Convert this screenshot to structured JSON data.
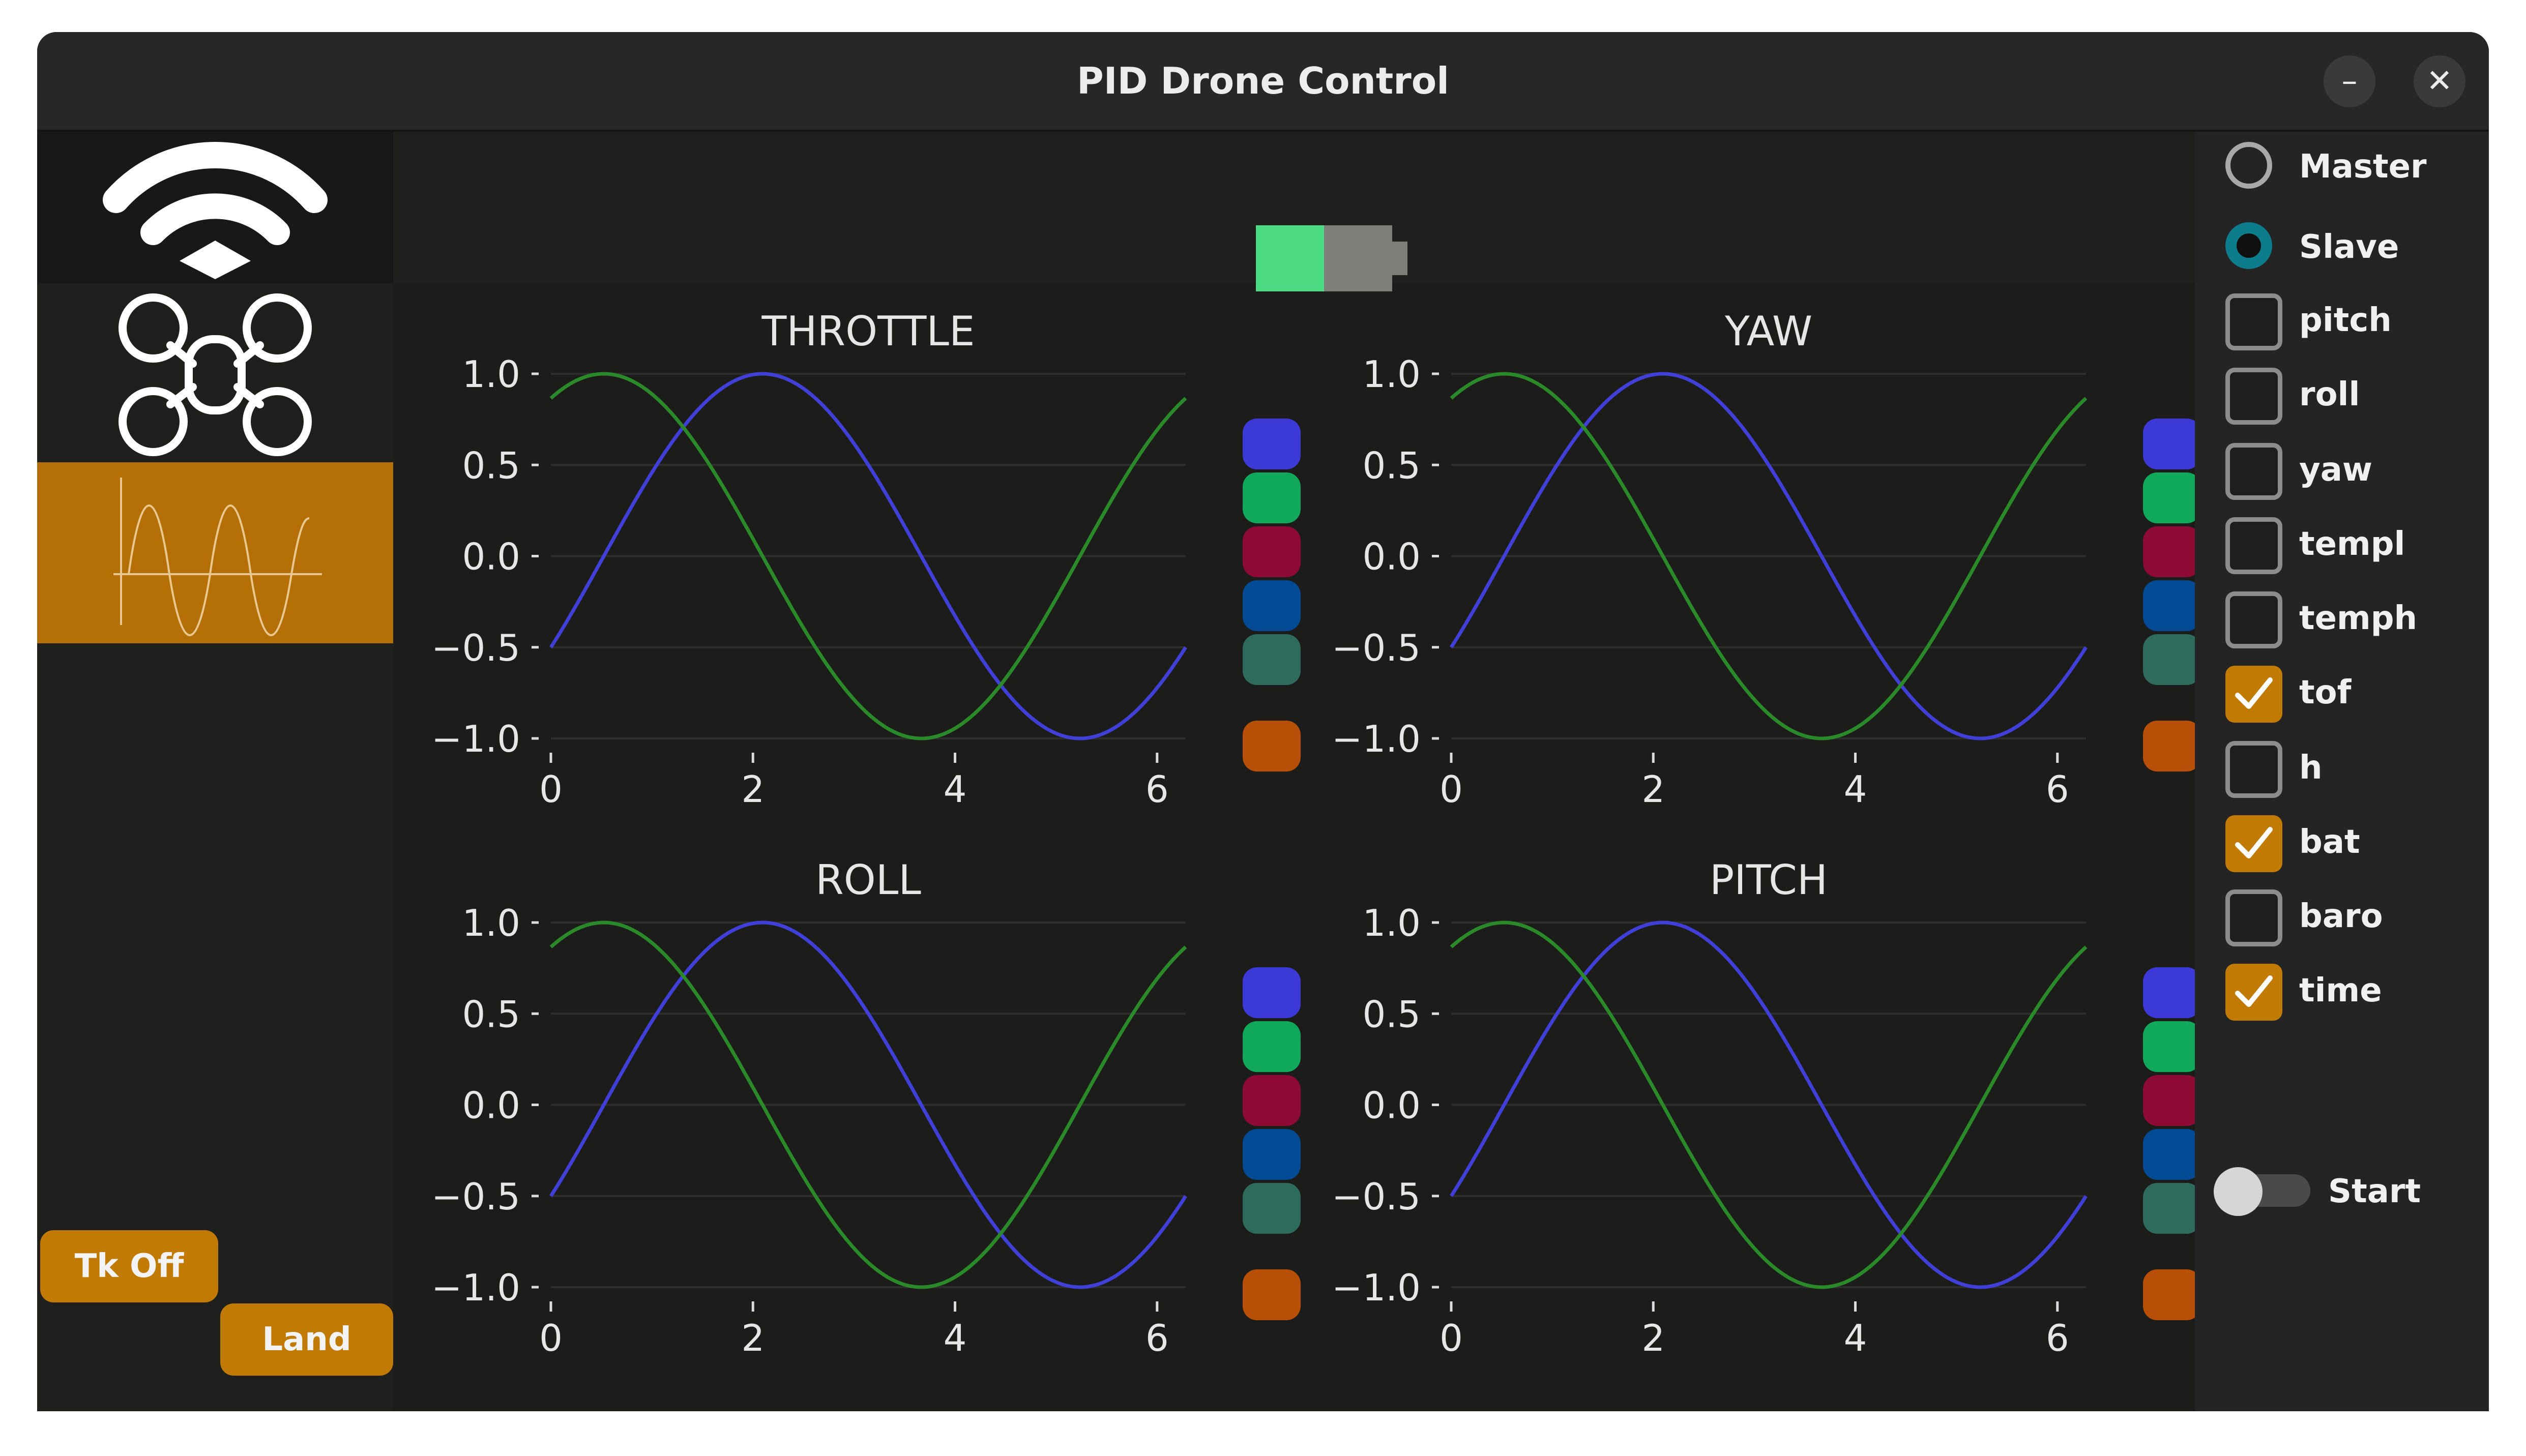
{
  "window": {
    "title": "PID Drone Control",
    "minimize_glyph": "–",
    "close_glyph": "✕"
  },
  "left_panel": {
    "icons": [
      "wifi-icon",
      "drone-icon",
      "plot-icon"
    ],
    "accent_color": "#b56f07",
    "buttons": {
      "takeoff_label": "Tk Off",
      "land_label": "Land"
    }
  },
  "battery": {
    "level": 0.5,
    "fill_color": "#4ddc84",
    "empty_color": "#7e7e7a"
  },
  "right_panel": {
    "mode": {
      "options": [
        "Master",
        "Slave"
      ],
      "selected": "Slave"
    },
    "channels": [
      {
        "label": "pitch",
        "checked": false
      },
      {
        "label": "roll",
        "checked": false
      },
      {
        "label": "yaw",
        "checked": false
      },
      {
        "label": "templ",
        "checked": false
      },
      {
        "label": "temph",
        "checked": false
      },
      {
        "label": "tof",
        "checked": true
      },
      {
        "label": "h",
        "checked": false
      },
      {
        "label": "bat",
        "checked": true
      },
      {
        "label": "baro",
        "checked": false
      },
      {
        "label": "time",
        "checked": true
      }
    ],
    "start": {
      "label": "Start",
      "on": false
    }
  },
  "legend_colors": [
    "#3c3ad6",
    "#10a85a",
    "#8c0a34",
    "#034a94",
    "#2f6b5c",
    "#b84f07"
  ],
  "chart_data": [
    {
      "type": "line",
      "title": "THROTTLE",
      "x_range": [
        0,
        6.283
      ],
      "xticks": [
        "0",
        "2",
        "4",
        "6"
      ],
      "ylim": [
        -1.0,
        1.0
      ],
      "yticks": [
        "1.0",
        "0.5",
        "0.0",
        "−0.5",
        "−1.0"
      ],
      "grid": true,
      "series": [
        {
          "function": "sin(x - 0.524)",
          "color": "#4040d8"
        },
        {
          "function": "cos(x - 0.524)",
          "color": "#2a8a2a"
        }
      ]
    },
    {
      "type": "line",
      "title": "YAW",
      "x_range": [
        0,
        6.283
      ],
      "xticks": [
        "0",
        "2",
        "4",
        "6"
      ],
      "ylim": [
        -1.0,
        1.0
      ],
      "yticks": [
        "1.0",
        "0.5",
        "0.0",
        "−0.5",
        "−1.0"
      ],
      "grid": true,
      "series": [
        {
          "function": "sin(x - 0.524)",
          "color": "#4040d8"
        },
        {
          "function": "cos(x - 0.524)",
          "color": "#2a8a2a"
        }
      ]
    },
    {
      "type": "line",
      "title": "ROLL",
      "x_range": [
        0,
        6.283
      ],
      "xticks": [
        "0",
        "2",
        "4",
        "6"
      ],
      "ylim": [
        -1.0,
        1.0
      ],
      "yticks": [
        "1.0",
        "0.5",
        "0.0",
        "−0.5",
        "−1.0"
      ],
      "grid": true,
      "series": [
        {
          "function": "sin(x - 0.524)",
          "color": "#4040d8"
        },
        {
          "function": "cos(x - 0.524)",
          "color": "#2a8a2a"
        }
      ]
    },
    {
      "type": "line",
      "title": "PITCH",
      "x_range": [
        0,
        6.283
      ],
      "xticks": [
        "0",
        "2",
        "4",
        "6"
      ],
      "ylim": [
        -1.0,
        1.0
      ],
      "yticks": [
        "1.0",
        "0.5",
        "0.0",
        "−0.5",
        "−1.0"
      ],
      "grid": true,
      "series": [
        {
          "function": "sin(x - 0.524)",
          "color": "#4040d8"
        },
        {
          "function": "cos(x - 0.524)",
          "color": "#2a8a2a"
        }
      ]
    }
  ]
}
